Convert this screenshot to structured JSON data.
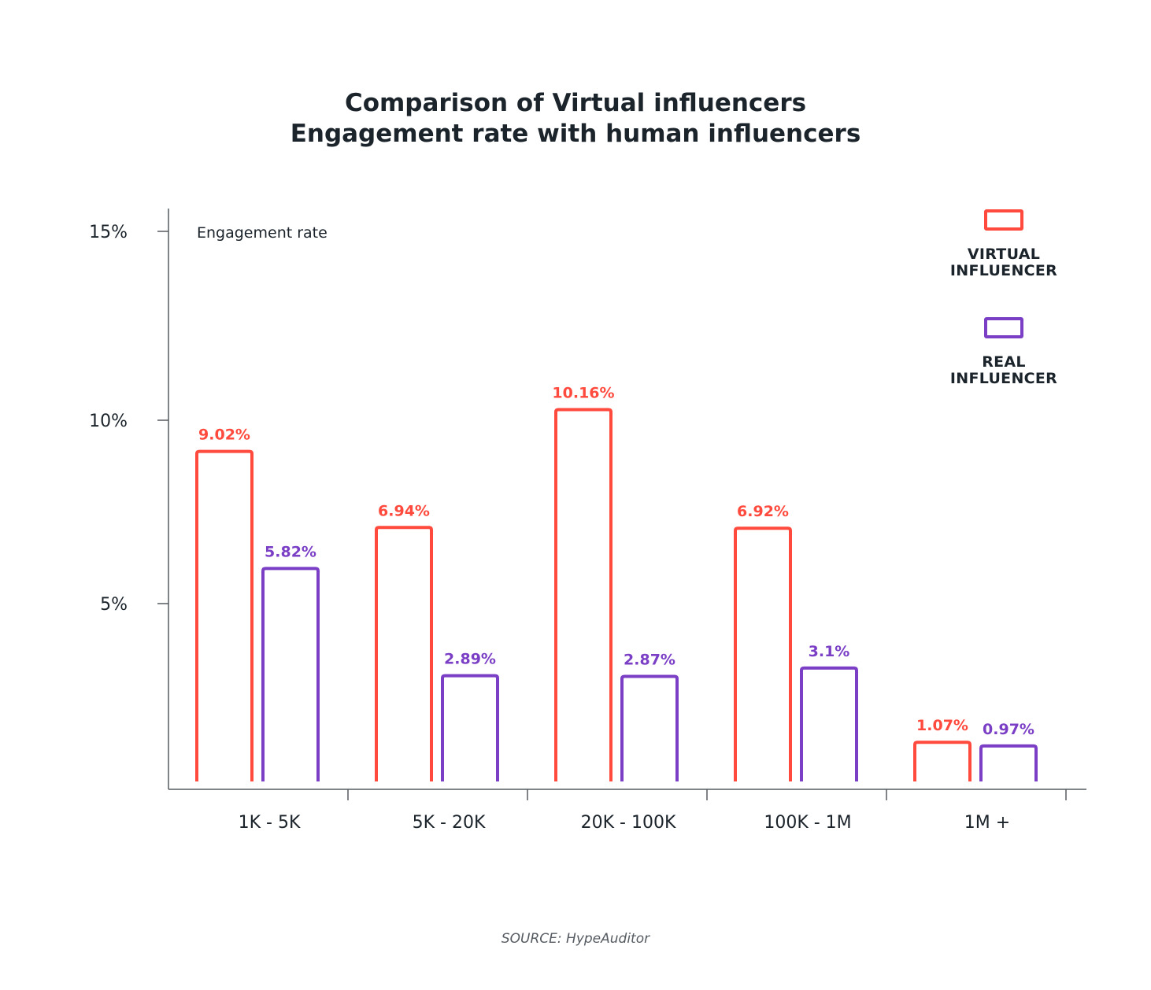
{
  "title_lines": [
    "Comparison of Virtual influencers",
    "Engagement rate with human influencers"
  ],
  "source": "SOURCE: HypeAuditor",
  "colors": {
    "virtual": "#ff4a3d",
    "real": "#7b3fc6",
    "axis": "#555b61",
    "text": "#1b232b"
  },
  "chart_data": {
    "type": "bar",
    "title": "Comparison of Virtual influencers Engagement rate with human influencers",
    "xlabel": "",
    "ylabel": "Engagement rate",
    "ylim": [
      0,
      15
    ],
    "yticks": [
      5,
      10,
      15
    ],
    "ytick_labels": [
      "5%",
      "10%",
      "15%"
    ],
    "grid": false,
    "legend_position": "top-right",
    "categories": [
      "1K - 5K",
      "5K - 20K",
      "20K - 100K",
      "100K - 1M",
      "1M +"
    ],
    "series": [
      {
        "name": "VIRTUAL INFLUENCER",
        "legend_lines": [
          "VIRTUAL",
          "INFLUENCER"
        ],
        "color": "#ff4a3d",
        "values": [
          9.02,
          6.94,
          10.16,
          6.92,
          1.07
        ],
        "labels": [
          "9.02%",
          "6.94%",
          "10.16%",
          "6.92%",
          "1.07%"
        ]
      },
      {
        "name": "REAL INFLUENCER",
        "legend_lines": [
          "REAL",
          "INFLUENCER"
        ],
        "color": "#7b3fc6",
        "values": [
          5.82,
          2.89,
          2.87,
          3.1,
          0.97
        ],
        "labels": [
          "5.82%",
          "2.89%",
          "2.87%",
          "3.1%",
          "0.97%"
        ]
      }
    ]
  }
}
